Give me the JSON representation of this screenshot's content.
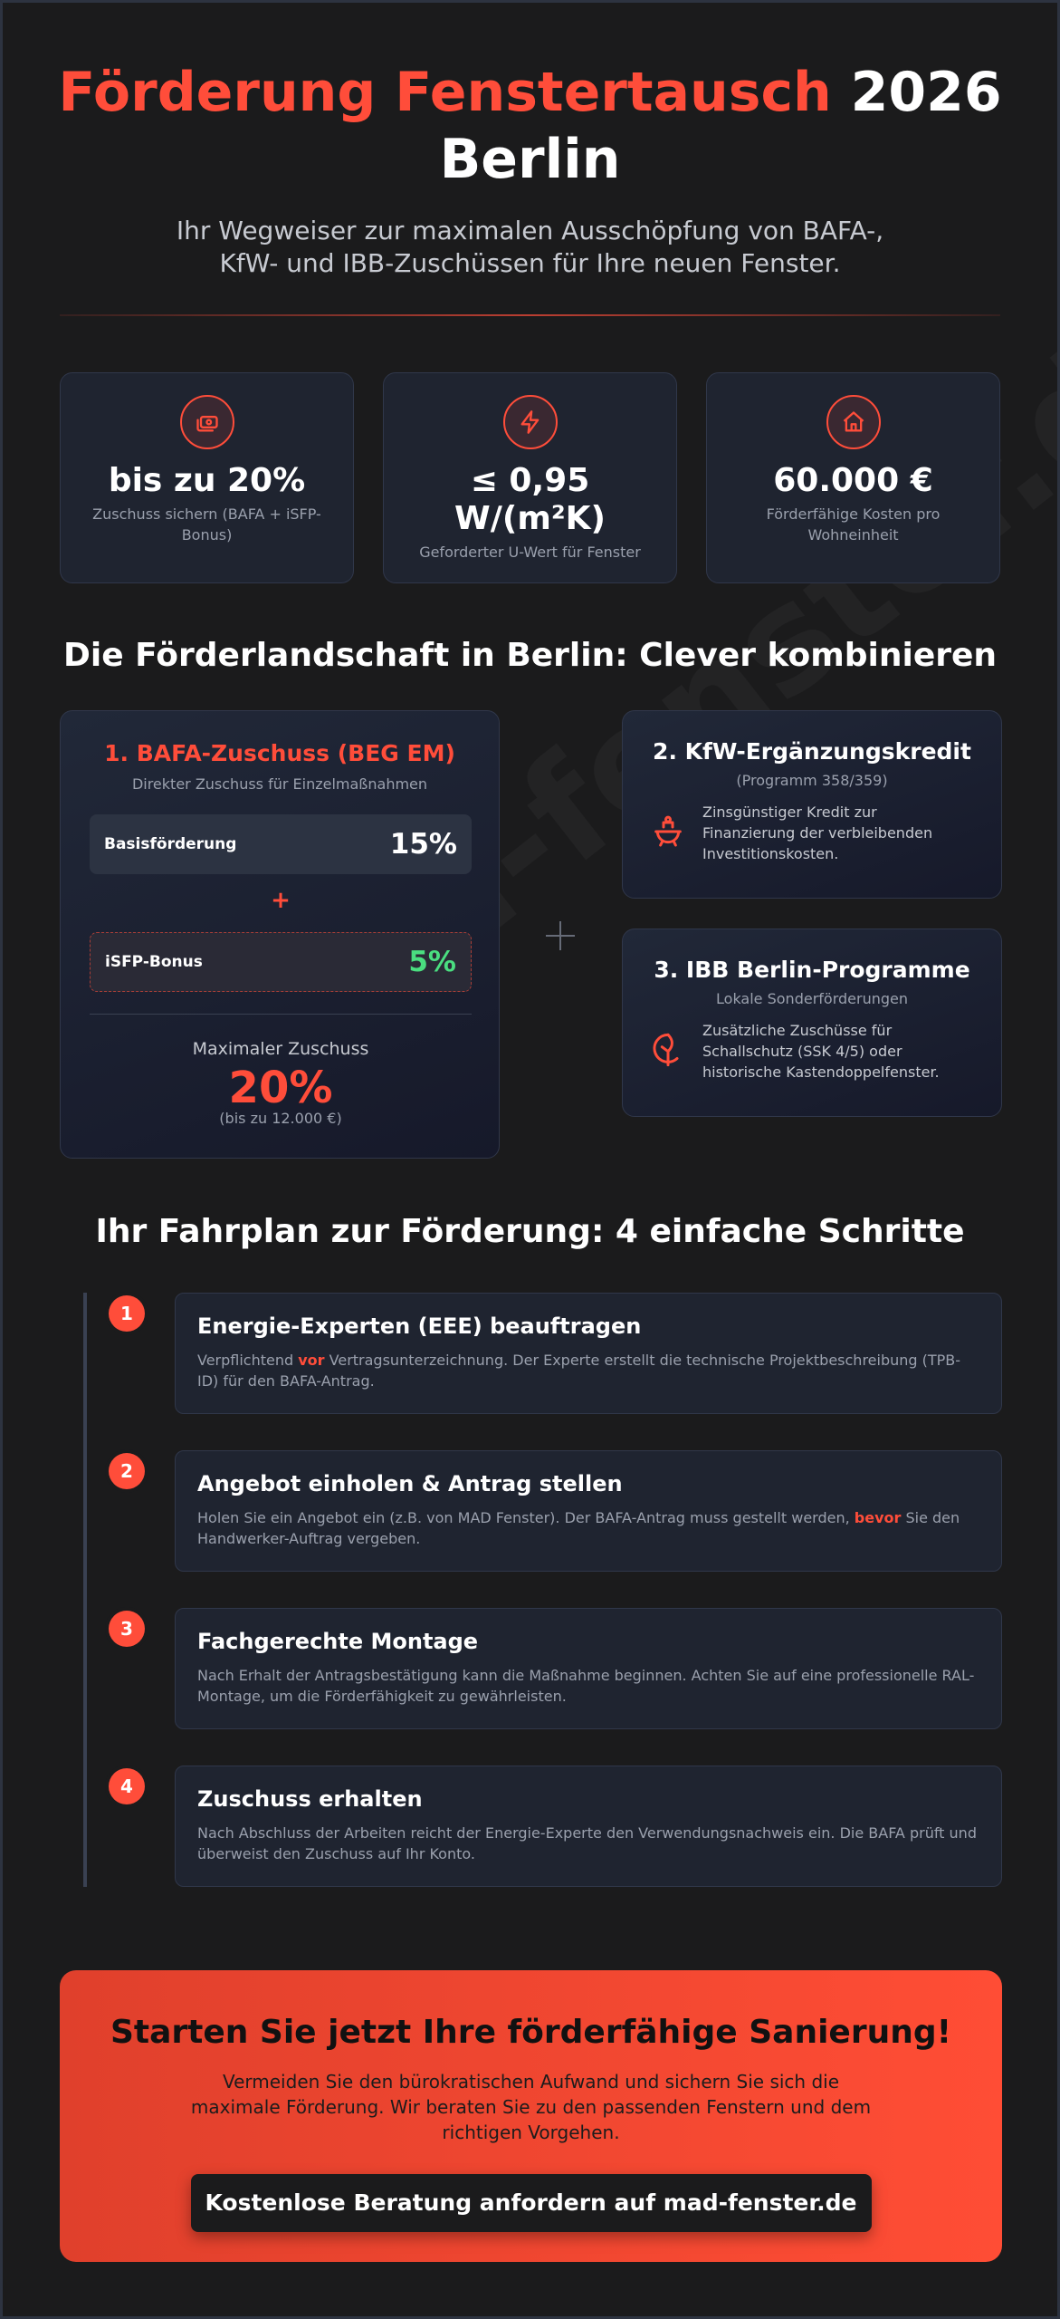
{
  "header": {
    "title_red": "Förderung Fenstertausch",
    "title_white": "2026",
    "title_line2": "Berlin",
    "subtitle_line1": "Ihr Wegweiser zur maximalen Ausschöpfung von BAFA-,",
    "subtitle_line2": "KfW- und IBB-Zuschüssen für Ihre neuen Fenster."
  },
  "stats": [
    {
      "icon": "money-icon",
      "value": "bis zu 20%",
      "label": "Zuschuss sichern (BAFA + iSFP-Bonus)"
    },
    {
      "icon": "lightning-icon",
      "value_line1": "≤ 0,95",
      "value_line2": "W/(m²K)",
      "label": "Geforderter U-Wert für Fenster"
    },
    {
      "icon": "house-icon",
      "value": "60.000 €",
      "label": "Förderfähige Kosten pro Wohneinheit"
    }
  ],
  "funding": {
    "heading": "Die Förderlandschaft in Berlin: Clever kombinieren",
    "bafa": {
      "title": "1. BAFA-Zuschuss (BEG EM)",
      "subtitle": "Direkter Zuschuss für Einzelmaßnahmen",
      "basis_label": "Basisförderung",
      "basis_value": "15%",
      "plus": "+",
      "isfp_label": "iSFP-Bonus",
      "isfp_value": "5%",
      "max_label": "Maximaler Zuschuss",
      "max_value": "20%",
      "max_note": "(bis zu 12.000 €)"
    },
    "kfw": {
      "title": "2. KfW-Ergänzungskredit",
      "subtitle": "(Programm 358/359)",
      "icon": "piggy-bank-icon",
      "text": "Zinsgünstiger Kredit zur Finanzierung der verbleibenden Investitionskosten."
    },
    "ibb": {
      "title": "3. IBB Berlin-Programme",
      "subtitle": "Lokale Sonderförderungen",
      "icon": "leaf-icon",
      "text": "Zusätzliche Zuschüsse für Schallschutz (SSK 4/5) oder historische Kastendoppelfenster."
    }
  },
  "roadmap": {
    "heading": "Ihr Fahrplan zur Förderung: 4 einfache Schritte",
    "steps": [
      {
        "num": "1",
        "title": "Energie-Experten (EEE) beauftragen",
        "d1": "Verpflichtend ",
        "hl": "vor",
        "d2": " Vertragsunterzeichnung. Der Experte erstellt die technische Projektbeschreibung (TPB-ID) für den BAFA-Antrag."
      },
      {
        "num": "2",
        "title": "Angebot einholen & Antrag stellen",
        "d1": "Holen Sie ein Angebot ein (z.B. von MAD Fenster). Der BAFA-Antrag muss gestellt werden, ",
        "hl": "bevor",
        "d2": " Sie den Handwerker-Auftrag vergeben."
      },
      {
        "num": "3",
        "title": "Fachgerechte Montage",
        "d1": "Nach Erhalt der Antragsbestätigung kann die Maßnahme beginnen. Achten Sie auf eine professionelle RAL-Montage, um die Förderfähigkeit zu gewährleisten."
      },
      {
        "num": "4",
        "title": "Zuschuss erhalten",
        "d1": "Nach Abschluss der Arbeiten reicht der Energie-Experte den Verwendungsnachweis ein. Die BAFA prüft und überweist den Zuschuss auf Ihr Konto."
      }
    ]
  },
  "cta": {
    "title": "Starten Sie jetzt Ihre förderfähige Sanierung!",
    "text": "Vermeiden Sie den bürokratischen Aufwand und sichern Sie sich die maximale Förderung. Wir beraten Sie zu den passenden Fenstern und dem richtigen Vorgehen.",
    "button": "Kostenlose Beratung anfordern auf mad-fenster.de"
  },
  "watermark": "mad-fenster.de",
  "colors": {
    "accent": "#ff4d3a",
    "green": "#4ade80",
    "background": "#1b1b1c"
  }
}
